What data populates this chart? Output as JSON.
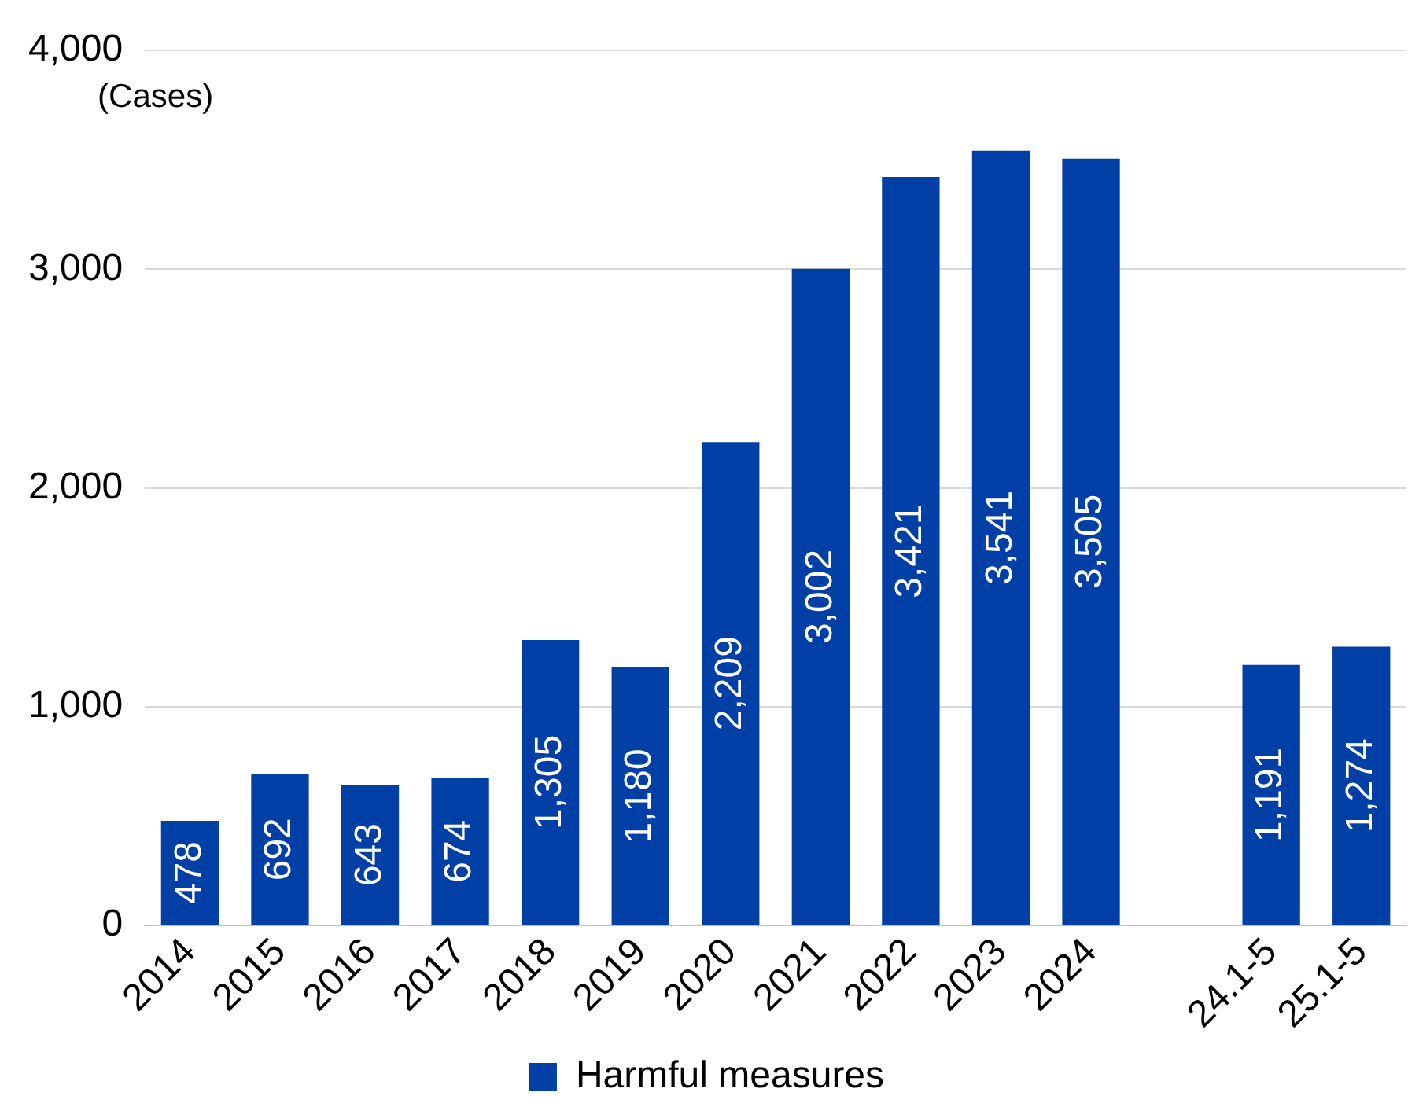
{
  "chart_data": {
    "type": "bar",
    "ylabel": "(Cases)",
    "categories": [
      "2014",
      "2015",
      "2016",
      "2017",
      "2018",
      "2019",
      "2020",
      "2021",
      "2022",
      "2023",
      "2024",
      null,
      "24.1-5",
      "25.1-5"
    ],
    "series": [
      {
        "name": "Harmful measures",
        "color": "#003fa5",
        "values": [
          478,
          692,
          643,
          674,
          1305,
          1180,
          2209,
          3002,
          3421,
          3541,
          3505,
          null,
          1191,
          1274
        ],
        "value_labels": [
          "478",
          "692",
          "643",
          "674",
          "1,305",
          "1,180",
          "2,209",
          "3,002",
          "3,421",
          "3,541",
          "3,505",
          null,
          "1,191",
          "1,274"
        ]
      }
    ],
    "ylim": [
      0,
      4000
    ],
    "yticks": [
      0,
      {
        "value": 1000,
        "label": "1,000"
      },
      {
        "value": 2000,
        "label": "2,000"
      },
      {
        "value": 3000,
        "label": "3,000"
      },
      {
        "value": 4000,
        "label": "4,000"
      }
    ],
    "grid": "y",
    "legend": "bottom"
  }
}
